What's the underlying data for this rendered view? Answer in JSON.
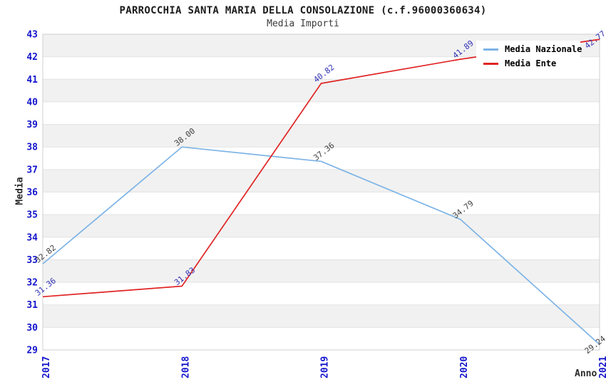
{
  "title": "PARROCCHIA SANTA MARIA DELLA CONSOLAZIONE (c.f.96000360634)",
  "subtitle": "Media Importi",
  "axes": {
    "x_label": "Anno",
    "y_label": "Media"
  },
  "legend": {
    "items": [
      {
        "label": "Media Nazionale",
        "color": "#7db4e6"
      },
      {
        "label": "Media Ente",
        "color": "#e02424"
      }
    ]
  },
  "colors": {
    "tick_label_blue": "#1414cc",
    "band_gray": "#f1f1f1",
    "band_white": "#ffffff",
    "gridline": "#e3e3e3",
    "plot_border": "#cfcfcf",
    "title_text": "#1c1c1c",
    "axis_title_text": "#2a2a2a"
  },
  "chart_data": {
    "type": "line",
    "title": "PARROCCHIA SANTA MARIA DELLA CONSOLAZIONE (c.f.96000360634)",
    "subtitle": "Media Importi",
    "xlabel": "Anno",
    "ylabel": "Media",
    "x": [
      "2017",
      "2018",
      "2019",
      "2020",
      "2021"
    ],
    "series": [
      {
        "name": "Media Nazionale",
        "color": "#7db4e6",
        "label_color": "#3f3f3f",
        "values": [
          32.82,
          38.0,
          37.36,
          34.79,
          29.24
        ]
      },
      {
        "name": "Media Ente",
        "color": "#e02424",
        "label_color": "#3232b4",
        "values": [
          31.36,
          31.83,
          40.82,
          41.89,
          42.77
        ]
      }
    ],
    "ylim": [
      29,
      43
    ],
    "y_ticks": [
      29,
      30,
      31,
      32,
      33,
      34,
      35,
      36,
      37,
      38,
      39,
      40,
      41,
      42,
      43
    ],
    "y_tick_step": 1,
    "grid": "horizontal-bands",
    "legend_position": "top-right",
    "point_labels_visible": true,
    "point_label_rotation_deg": -38
  }
}
